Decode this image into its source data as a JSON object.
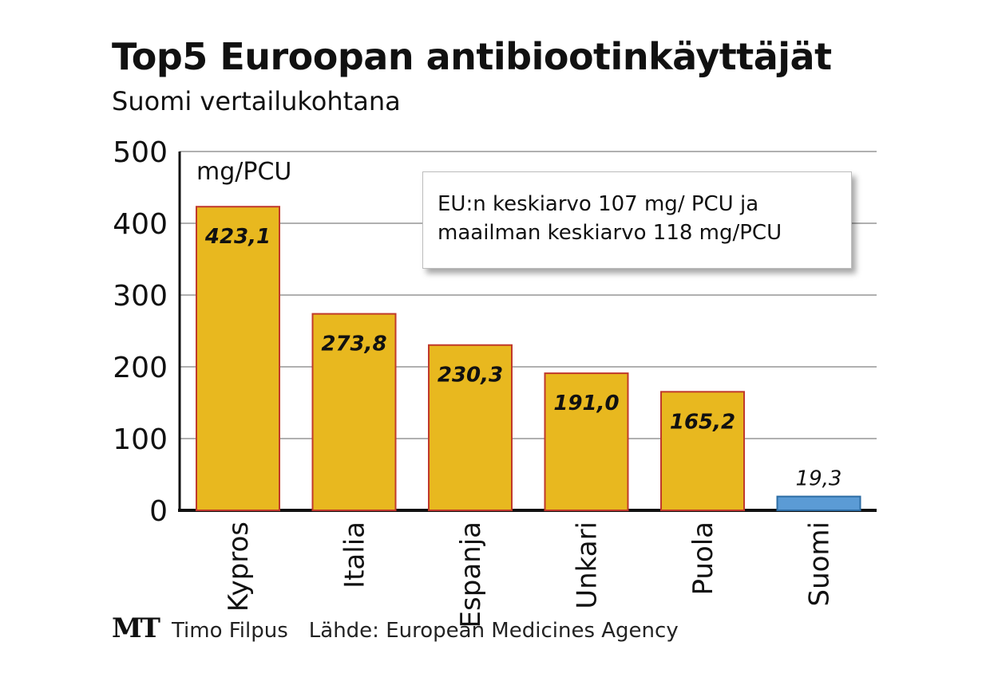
{
  "chart_data": {
    "type": "bar",
    "title": "Top5 Euroopan antibiootinkäyttäjät",
    "subtitle": "Suomi vertailukohtana",
    "unit_label": "mg/PCU",
    "categories": [
      "Kypros",
      "Italia",
      "Espanja",
      "Unkari",
      "Puola",
      "Suomi"
    ],
    "values": [
      423.1,
      273.8,
      230.3,
      191.0,
      165.2,
      19.3
    ],
    "value_labels": [
      "423,1",
      "273,8",
      "230,3",
      "191,0",
      "165,2",
      "19,3"
    ],
    "ylim": [
      0,
      500
    ],
    "yticks": [
      0,
      100,
      200,
      300,
      400,
      500
    ],
    "grid": true,
    "colors": {
      "highlight": "#e8b81f",
      "highlight_border": "#c0392b",
      "comparison": "#5b9bd5",
      "comparison_border": "#2e6da4",
      "grid": "#b0b0b0",
      "axis": "#111111"
    },
    "annotation": {
      "lines": [
        "EU:n keskiarvo 107 mg/ PCU ja",
        "maailman keskiarvo 118 mg/PCU"
      ]
    }
  },
  "footer": {
    "logo": "MT",
    "author": "Timo Filpus",
    "source": "Lähde: European Medicines Agency"
  }
}
